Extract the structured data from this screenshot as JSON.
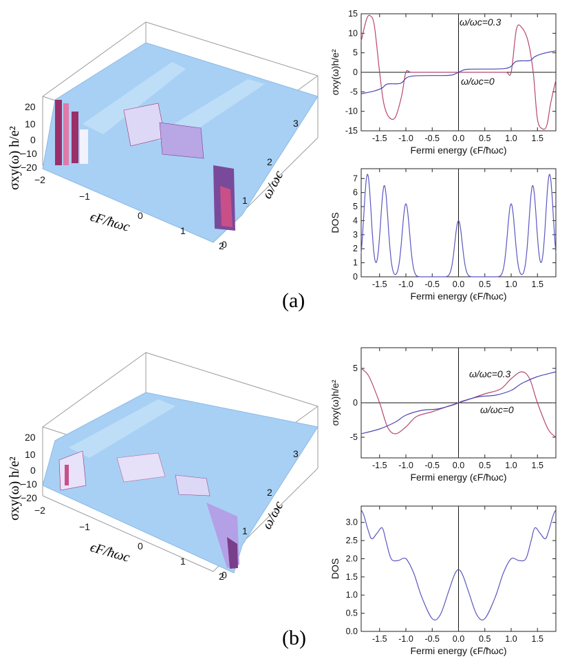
{
  "chart_data": [
    {
      "type": "surface",
      "xlabel": "ϵF/ħωc",
      "ylabel": "ω/ωc",
      "zlabel": "σxy(ω) h/e²",
      "x_ticks": [
        "−2",
        "−1",
        "0",
        "1",
        "2"
      ],
      "y_ticks": [
        "0",
        "1",
        "2",
        "3"
      ],
      "z_ticks": [
        "20",
        "10",
        "0",
        "−10",
        "−20"
      ],
      "xlim": [
        -2,
        2
      ],
      "ylim": [
        0,
        3.4
      ],
      "zlim": [
        -20,
        20
      ],
      "surface_color": "#a8d0f4",
      "edge_colors": [
        "#9a2f6a",
        "#e07aa8",
        "#f2f2ff"
      ]
    },
    {
      "type": "line",
      "xlabel": "Fermi energy (ϵF/ħωc)",
      "ylabel": "σxy(ω)h/e²",
      "xlim": [
        -1.85,
        1.85
      ],
      "ylim": [
        -15,
        15
      ],
      "x_ticks": [
        "-1.5",
        "-1.0",
        "-0.5",
        "0.0",
        "0.5",
        "1.0",
        "1.5"
      ],
      "y_ticks": [
        "15",
        "10",
        "5",
        "0",
        "-5",
        "-10",
        "-15"
      ],
      "series": [
        {
          "name": "ω/ωc=0.3",
          "color": "#b5486e",
          "x": [
            -1.85,
            -1.75,
            -1.68,
            -1.6,
            -1.5,
            -1.42,
            -1.32,
            -1.2,
            -1.08,
            -1.0,
            -0.9,
            -0.6,
            -0.3,
            -0.1,
            0,
            0.1,
            0.3,
            0.6,
            0.9,
            1.0,
            1.1,
            1.2,
            1.32,
            1.42,
            1.5,
            1.6,
            1.68,
            1.75,
            1.85
          ],
          "y": [
            8,
            13.5,
            14.5,
            12,
            0,
            -8,
            -11.5,
            -11.5,
            -6,
            0,
            0,
            0,
            0,
            0,
            0,
            0,
            0,
            0,
            0,
            0,
            11,
            11.5,
            8,
            0,
            -12,
            -14.5,
            -13.5,
            -8,
            -2
          ]
        },
        {
          "name": "ω/ωc=0",
          "color": "#4a46b2",
          "x": [
            -1.85,
            -1.6,
            -1.45,
            -1.35,
            -1.1,
            -0.9,
            -0.2,
            -0.05,
            0,
            0.05,
            0.2,
            0.9,
            1.1,
            1.35,
            1.45,
            1.6,
            1.85
          ],
          "y": [
            -5.5,
            -4.8,
            -4,
            -3,
            -2.8,
            -1,
            -0.8,
            -0.3,
            0,
            0.3,
            0.8,
            1,
            2.8,
            3,
            4,
            4.8,
            5.5
          ]
        }
      ]
    },
    {
      "type": "line",
      "xlabel": "Fermi energy (ϵF/ħωc)",
      "ylabel": "DOS",
      "xlim": [
        -1.85,
        1.85
      ],
      "ylim": [
        0,
        7.7
      ],
      "x_ticks": [
        "-1.5",
        "-1.0",
        "-0.5",
        "0.0",
        "0.5",
        "1.0",
        "1.5"
      ],
      "y_ticks": [
        "0",
        "1",
        "2",
        "3",
        "4",
        "5",
        "6",
        "7"
      ],
      "series": [
        {
          "name": "",
          "color": "#5a56c0",
          "peaks": [
            [
              -1.73,
              7.3
            ],
            [
              -1.41,
              6.5
            ],
            [
              -1.0,
              5.2
            ],
            [
              0,
              4.0
            ],
            [
              1.0,
              5.2
            ],
            [
              1.41,
              6.5
            ],
            [
              1.73,
              7.3
            ]
          ],
          "width": 0.07
        }
      ]
    },
    {
      "type": "surface",
      "xlabel": "ϵF/ħωc",
      "ylabel": "ω/ωc",
      "zlabel": "σxy(ω) h/e²",
      "x_ticks": [
        "−2",
        "−1",
        "0",
        "1",
        "2"
      ],
      "y_ticks": [
        "0",
        "1",
        "2",
        "3"
      ],
      "z_ticks": [
        "20",
        "10",
        "0",
        "−10",
        "−20"
      ],
      "xlim": [
        -2,
        2
      ],
      "ylim": [
        0,
        3.4
      ],
      "zlim": [
        -20,
        20
      ],
      "surface_color": "#a8d0f4",
      "edge_colors": [
        "#9a2f6a",
        "#e07aa8",
        "#f2f2ff"
      ]
    },
    {
      "type": "line",
      "xlabel": "Fermi energy (ϵF/ħωc)",
      "ylabel": "σxy(ω)h/e²",
      "xlim": [
        -1.85,
        1.85
      ],
      "ylim": [
        -8,
        8
      ],
      "x_ticks": [
        "-1.5",
        "-1.0",
        "-0.5",
        "0.0",
        "0.5",
        "1.0",
        "1.5"
      ],
      "y_ticks": [
        "5",
        "0",
        "-5"
      ],
      "series": [
        {
          "name": "ω/ωc=0.3",
          "color": "#b5486e",
          "x": [
            -1.85,
            -1.7,
            -1.5,
            -1.35,
            -1.2,
            -1.0,
            -0.8,
            -0.5,
            -0.2,
            0,
            0.2,
            0.5,
            0.8,
            1.0,
            1.2,
            1.35,
            1.5,
            1.7,
            1.85
          ],
          "y": [
            5,
            3.8,
            0,
            -3.5,
            -4.5,
            -3.5,
            -2,
            -1.3,
            -0.5,
            0,
            0.5,
            1.3,
            2,
            3.5,
            4.5,
            3.5,
            0,
            -3.8,
            -5
          ]
        },
        {
          "name": "ω/ωc=0",
          "color": "#4a46b2",
          "x": [
            -1.85,
            -1.5,
            -1.2,
            -1.0,
            -0.7,
            -0.4,
            -0.1,
            0,
            0.1,
            0.4,
            0.7,
            1.0,
            1.2,
            1.5,
            1.85
          ],
          "y": [
            -4.5,
            -3.8,
            -2.8,
            -1.8,
            -1.1,
            -0.9,
            -0.3,
            0,
            0.3,
            0.9,
            1.1,
            1.8,
            2.8,
            3.8,
            4.5
          ]
        }
      ]
    },
    {
      "type": "line",
      "xlabel": "Fermi energy (ϵF/ħωc)",
      "ylabel": "DOS",
      "xlim": [
        -1.85,
        1.85
      ],
      "ylim": [
        0,
        3.45
      ],
      "x_ticks": [
        "-1.5",
        "-1.0",
        "-0.5",
        "0.0",
        "0.5",
        "1.0",
        "1.5"
      ],
      "y_ticks": [
        "0.0",
        "0.5",
        "1.0",
        "1.5",
        "2.0",
        "2.5",
        "3.0"
      ],
      "series": [
        {
          "name": "",
          "color": "#5a56c0",
          "x": [
            -1.85,
            -1.8,
            -1.72,
            -1.65,
            -1.55,
            -1.45,
            -1.38,
            -1.28,
            -1.15,
            -1.0,
            -0.85,
            -0.7,
            -0.5,
            -0.35,
            -0.2,
            -0.08,
            0,
            0.08,
            0.2,
            0.35,
            0.5,
            0.7,
            0.85,
            1.0,
            1.15,
            1.28,
            1.38,
            1.45,
            1.55,
            1.65,
            1.72,
            1.8,
            1.85
          ],
          "y": [
            3.35,
            3.2,
            2.8,
            2.55,
            2.7,
            2.85,
            2.5,
            2.0,
            1.95,
            2.0,
            1.6,
            0.95,
            0.35,
            0.45,
            1.05,
            1.55,
            1.7,
            1.55,
            1.05,
            0.45,
            0.35,
            0.95,
            1.6,
            2.0,
            1.95,
            2.0,
            2.5,
            2.85,
            2.7,
            2.55,
            2.8,
            3.2,
            3.35
          ]
        }
      ]
    }
  ],
  "labels": {
    "panel_a": "(a)",
    "panel_b": "(b)"
  }
}
